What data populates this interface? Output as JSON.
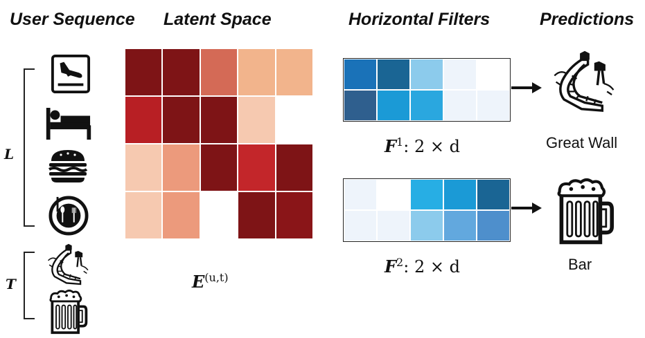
{
  "headers": {
    "user_sequence": "User Sequence",
    "latent_space": "Latent Space",
    "horizontal_filters": "Horizontal Filters",
    "predictions": "Predictions"
  },
  "sequence": {
    "L_label": "L",
    "T_label": "T",
    "L_items": [
      "airplane-landing-icon",
      "bed-icon",
      "burger-icon",
      "restaurant-icon"
    ],
    "T_items": [
      "great-wall-icon",
      "beer-mug-icon"
    ]
  },
  "embedding": {
    "label_main": "E",
    "label_sup": "(u,t)",
    "rows": 4,
    "cols": 5,
    "colors": [
      [
        "#7e1416",
        "#7e1416",
        "#d46a56",
        "#f2b48c",
        "#f2b48c"
      ],
      [
        "#b81f24",
        "#7e1416",
        "#7e1416",
        "#f6c9b0",
        "#ffffff"
      ],
      [
        "#f6c9b0",
        "#ec9a7c",
        "#7e1416",
        "#c3262a",
        "#7e1416"
      ],
      [
        "#f6c9b0",
        "#ec9a7c",
        "#ffffff",
        "#7e1416",
        "#8a1518"
      ]
    ]
  },
  "filters": [
    {
      "label_main": "F",
      "label_sup": "1",
      "label_rest": ": 2 × d",
      "colors": [
        [
          "#1a72b8",
          "#1a6594",
          "#8ccbec",
          "#eef4fb",
          "#ffffff"
        ],
        [
          "#2f5f8e",
          "#1b9ad6",
          "#2aa7df",
          "#eef4fb",
          "#eef4fb"
        ]
      ],
      "prediction": "Great Wall",
      "prediction_icon": "great-wall-icon"
    },
    {
      "label_main": "F",
      "label_sup": "2",
      "label_rest": ": 2 × d",
      "colors": [
        [
          "#eef4fb",
          "#ffffff",
          "#27aee4",
          "#1b9ad6",
          "#1a6594"
        ],
        [
          "#eef4fb",
          "#eef4fb",
          "#8ccbec",
          "#62a8de",
          "#4e8fcc"
        ]
      ],
      "prediction": "Bar",
      "prediction_icon": "beer-mug-icon"
    }
  ]
}
